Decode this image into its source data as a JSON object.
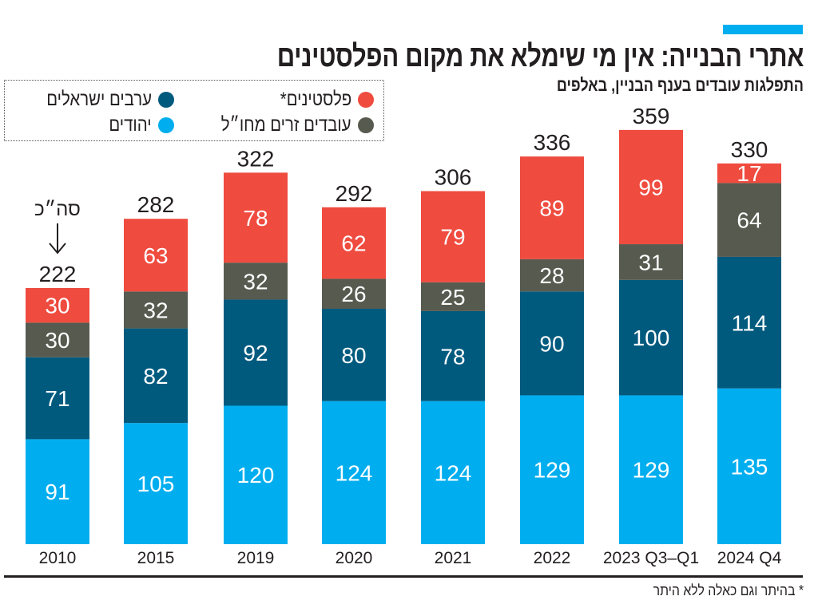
{
  "header": {
    "title": "אתרי הבנייה: אין מי שימלא את מקום הפלסטינים",
    "subtitle": "התפלגות עובדים בענף הבניין, באלפים"
  },
  "legend": [
    {
      "label": "פלסטינים*",
      "color": "#EF4B3F"
    },
    {
      "label": "ערבים ישראלים",
      "color": "#005A7E"
    },
    {
      "label": "עובדים זרים מחו״ל",
      "color": "#575A4F"
    },
    {
      "label": "יהודים",
      "color": "#00AEEF"
    }
  ],
  "annotation": {
    "total_label": "סה״כ",
    "arrow_icon": "arrow-down-icon"
  },
  "footnote": "* בהיתר וגם כאלה ללא היתר",
  "chart_data": {
    "type": "bar",
    "stacked": true,
    "title": "אתרי הבנייה: אין מי שימלא את מקום הפלסטינים",
    "subtitle": "התפלגות עובדים בענף הבניין, באלפים",
    "categories": [
      "2010",
      "2015",
      "2019",
      "2020",
      "2021",
      "2022",
      "2023 Q3-Q1",
      "2024 Q4"
    ],
    "series": [
      {
        "name": "יהודים",
        "color": "#00AEEF",
        "values": [
          91,
          105,
          120,
          124,
          124,
          129,
          129,
          135
        ]
      },
      {
        "name": "ערבים ישראלים",
        "color": "#005A7E",
        "values": [
          71,
          82,
          92,
          80,
          78,
          90,
          100,
          114
        ]
      },
      {
        "name": "עובדים זרים מחו״ל",
        "color": "#575A4F",
        "values": [
          30,
          32,
          32,
          26,
          25,
          28,
          31,
          64
        ]
      },
      {
        "name": "פלסטינים*",
        "color": "#EF4B3F",
        "values": [
          30,
          63,
          78,
          62,
          79,
          89,
          99,
          17
        ]
      }
    ],
    "totals": [
      222,
      282,
      322,
      292,
      306,
      336,
      359,
      330
    ],
    "ylim": [
      0,
      380
    ],
    "grid": false,
    "legend_position": "top-left"
  }
}
